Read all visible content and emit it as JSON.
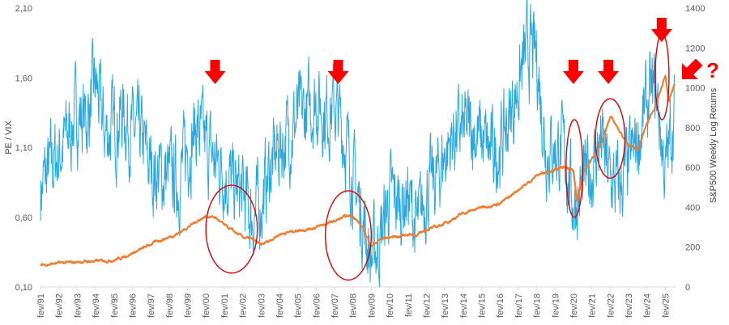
{
  "chart_data": {
    "type": "line",
    "y_left_label": "PE / VIX",
    "y_right_label": "S&P500 Weekly Log Returns",
    "y_left_ticks": [
      "0,10",
      "0,60",
      "1,10",
      "1,60",
      "2,10"
    ],
    "y_right_ticks": [
      "0",
      "200",
      "400",
      "600",
      "800",
      "1000",
      "1200",
      "1400"
    ],
    "y_left_range": [
      0.1,
      2.1
    ],
    "y_right_range": [
      0,
      1400
    ],
    "x_range": [
      1991.0,
      2025.6
    ],
    "x_ticks": [
      "fev/91",
      "fev/92",
      "fev/93",
      "fev/94",
      "fev/95",
      "fev/96",
      "fev/97",
      "fev/98",
      "fev/99",
      "fev/00",
      "fev/01",
      "fev/02",
      "fev/03",
      "fev/04",
      "fev/05",
      "fev/06",
      "fev/07",
      "fev/08",
      "fev/09",
      "fev/10",
      "fev/11",
      "fev/12",
      "fev/13",
      "fev/14",
      "fev/15",
      "fev/16",
      "fev/17",
      "fev/18",
      "fev/19",
      "fev/20",
      "fev/21",
      "fev/22",
      "fev/23",
      "fev/24",
      "fev/25"
    ],
    "grid": false,
    "legend": "none",
    "series": [
      {
        "axis": "left",
        "color": "#29a8e0",
        "x": [
          1991.0,
          1991.5,
          1992.0,
          1992.5,
          1993.0,
          1993.5,
          1994.0,
          1994.5,
          1995.0,
          1995.5,
          1996.0,
          1996.5,
          1997.0,
          1997.5,
          1998.0,
          1998.5,
          1999.0,
          1999.5,
          2000.0,
          2000.5,
          2001.0,
          2001.5,
          2002.0,
          2002.5,
          2003.0,
          2003.5,
          2004.0,
          2004.5,
          2005.0,
          2005.5,
          2006.0,
          2006.5,
          2007.0,
          2007.5,
          2008.0,
          2008.5,
          2009.0,
          2009.5,
          2010.0,
          2010.5,
          2011.0,
          2011.5,
          2012.0,
          2012.5,
          2013.0,
          2013.5,
          2014.0,
          2014.5,
          2015.0,
          2015.5,
          2016.0,
          2016.5,
          2017.0,
          2017.5,
          2018.0,
          2018.5,
          2019.0,
          2019.5,
          2020.0,
          2020.5,
          2021.0,
          2021.5,
          2022.0,
          2022.5,
          2023.0,
          2023.5,
          2024.0,
          2024.5,
          2025.0,
          2025.5
        ],
        "y": [
          0.8,
          0.95,
          1.05,
          1.2,
          1.35,
          1.3,
          1.55,
          1.2,
          1.25,
          1.35,
          1.2,
          1.15,
          0.95,
          0.9,
          0.9,
          0.85,
          1.1,
          1.25,
          1.1,
          1.0,
          0.95,
          0.8,
          0.75,
          0.6,
          0.7,
          0.95,
          1.1,
          1.2,
          1.3,
          1.35,
          1.45,
          1.35,
          1.4,
          1.2,
          0.9,
          0.6,
          0.3,
          0.45,
          0.75,
          0.7,
          0.75,
          0.5,
          0.8,
          0.85,
          1.05,
          1.2,
          1.2,
          1.25,
          1.15,
          1.05,
          1.1,
          1.3,
          1.55,
          1.8,
          1.75,
          1.1,
          1.1,
          1.05,
          0.7,
          0.8,
          0.95,
          1.15,
          0.85,
          0.8,
          0.95,
          1.15,
          1.4,
          1.5,
          0.9,
          1.4
        ]
      },
      {
        "axis": "right",
        "color": "#ed7d31",
        "x": [
          1991.0,
          1991.5,
          1992.0,
          1992.5,
          1993.0,
          1993.5,
          1994.0,
          1994.5,
          1995.0,
          1995.5,
          1996.0,
          1996.5,
          1997.0,
          1997.5,
          1998.0,
          1998.5,
          1999.0,
          1999.5,
          2000.0,
          2000.5,
          2001.0,
          2001.5,
          2002.0,
          2002.5,
          2003.0,
          2003.5,
          2004.0,
          2004.5,
          2005.0,
          2005.5,
          2006.0,
          2006.5,
          2007.0,
          2007.5,
          2008.0,
          2008.5,
          2009.0,
          2009.5,
          2010.0,
          2010.5,
          2011.0,
          2011.5,
          2012.0,
          2012.5,
          2013.0,
          2013.5,
          2014.0,
          2014.5,
          2015.0,
          2015.5,
          2016.0,
          2016.5,
          2017.0,
          2017.5,
          2018.0,
          2018.5,
          2019.0,
          2019.5,
          2020.0,
          2020.2,
          2020.5,
          2021.0,
          2021.5,
          2022.0,
          2022.5,
          2023.0,
          2023.5,
          2024.0,
          2024.5,
          2025.0,
          2025.2,
          2025.5
        ],
        "y": [
          110,
          115,
          120,
          122,
          125,
          128,
          130,
          132,
          135,
          150,
          170,
          190,
          215,
          235,
          250,
          270,
          300,
          330,
          355,
          350,
          310,
          280,
          250,
          240,
          210,
          235,
          265,
          275,
          285,
          290,
          300,
          315,
          330,
          350,
          360,
          300,
          205,
          240,
          250,
          255,
          265,
          260,
          290,
          300,
          320,
          345,
          370,
          385,
          400,
          410,
          420,
          450,
          490,
          520,
          560,
          580,
          590,
          600,
          580,
          430,
          570,
          640,
          710,
          860,
          780,
          710,
          690,
          820,
          920,
          1060,
          930,
          1020
        ]
      }
    ],
    "annotations": {
      "arrow_years": [
        2000.5,
        2007.2,
        2020.0,
        2021.9,
        2024.8,
        2025.3
      ],
      "question_mark": "?",
      "circled_periods": [
        {
          "x": [
            2000.0,
            2002.8
          ],
          "y": [
            0.2,
            0.83
          ]
        },
        {
          "x": [
            2006.5,
            2009.0
          ],
          "y": [
            0.15,
            0.79
          ]
        },
        {
          "x": [
            2019.6,
            2020.5
          ],
          "y": [
            0.6,
            1.3
          ]
        },
        {
          "x": [
            2021.2,
            2022.8
          ],
          "y": [
            0.88,
            1.45
          ]
        },
        {
          "x": [
            2024.45,
            2025.2
          ],
          "y": [
            1.3,
            1.92
          ]
        }
      ]
    }
  }
}
